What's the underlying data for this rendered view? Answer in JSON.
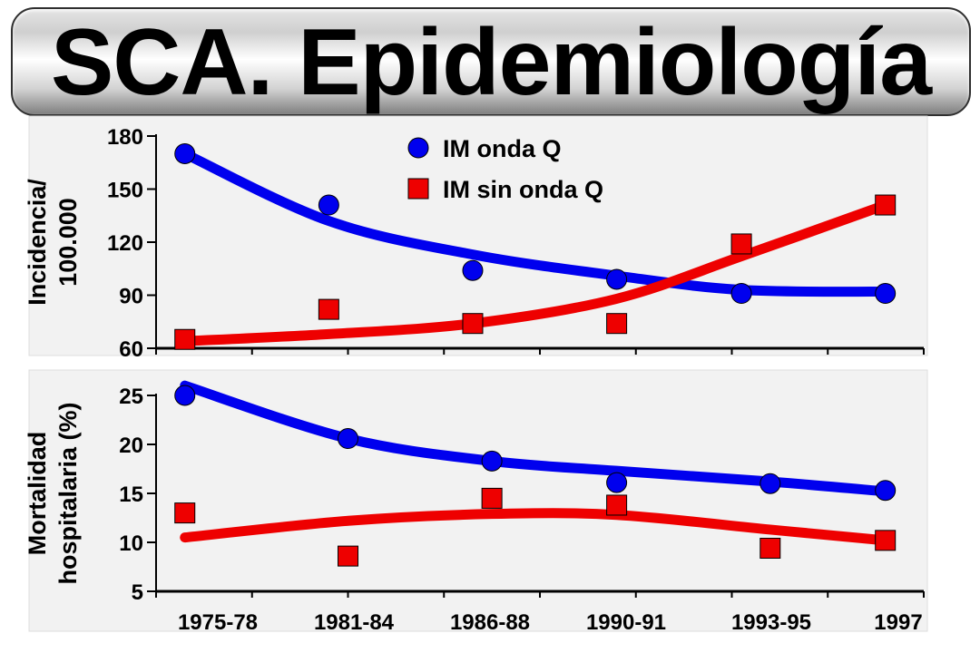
{
  "title": "SCA. Epidemiología",
  "colors": {
    "blue": "#0000ee",
    "red": "#ee0000",
    "panel": "#f2f2f2"
  },
  "chart_data": [
    {
      "type": "scatter",
      "ylabel_lines": [
        "Incidencia/",
        "100.000"
      ],
      "ylim": [
        60,
        180
      ],
      "yticks": [
        60,
        90,
        120,
        150,
        180
      ],
      "legend": {
        "position": "top-center",
        "entries": [
          "IM onda Q",
          "IM sin onda Q"
        ]
      },
      "series": [
        {
          "name": "IM onda Q",
          "marker": "circle",
          "color": "#0000ee",
          "x": [
            0.3,
            1.8,
            3.3,
            4.8,
            6.1,
            7.6
          ],
          "y": [
            170,
            141,
            104,
            99,
            91,
            91
          ],
          "trend_y": [
            170,
            132,
            113,
            101,
            93,
            92
          ]
        },
        {
          "name": "IM sin onda Q",
          "marker": "square",
          "color": "#ee0000",
          "x": [
            0.3,
            1.8,
            3.3,
            4.8,
            6.1,
            7.6
          ],
          "y": [
            65,
            82,
            74,
            74,
            119,
            141
          ],
          "trend_y": [
            64,
            68,
            74,
            88,
            112,
            141
          ]
        }
      ]
    },
    {
      "type": "scatter",
      "ylabel_lines": [
        "Mortalidad",
        "hospitalaria (%)"
      ],
      "ylim": [
        5,
        25
      ],
      "yticks": [
        5,
        10,
        15,
        20,
        25
      ],
      "categories": [
        "1975-78",
        "1981-84",
        "1986-88",
        "1990-91",
        "1993-95",
        "1997"
      ],
      "series": [
        {
          "name": "IM onda Q",
          "marker": "circle",
          "color": "#0000ee",
          "x": [
            0.3,
            2.0,
            3.5,
            4.8,
            6.4,
            7.6
          ],
          "y": [
            25,
            20.6,
            18.3,
            16.1,
            16.0,
            15.3
          ],
          "trend_y": [
            26,
            20.6,
            18.3,
            17.3,
            16.2,
            15.2
          ]
        },
        {
          "name": "IM sin onda Q",
          "marker": "square",
          "color": "#ee0000",
          "x": [
            0.3,
            2.0,
            3.5,
            4.8,
            6.4,
            7.6
          ],
          "y": [
            13.0,
            8.6,
            14.5,
            13.8,
            9.4,
            10.2
          ],
          "trend_y": [
            10.5,
            12.2,
            12.9,
            12.8,
            11.3,
            10.2
          ]
        }
      ]
    }
  ]
}
